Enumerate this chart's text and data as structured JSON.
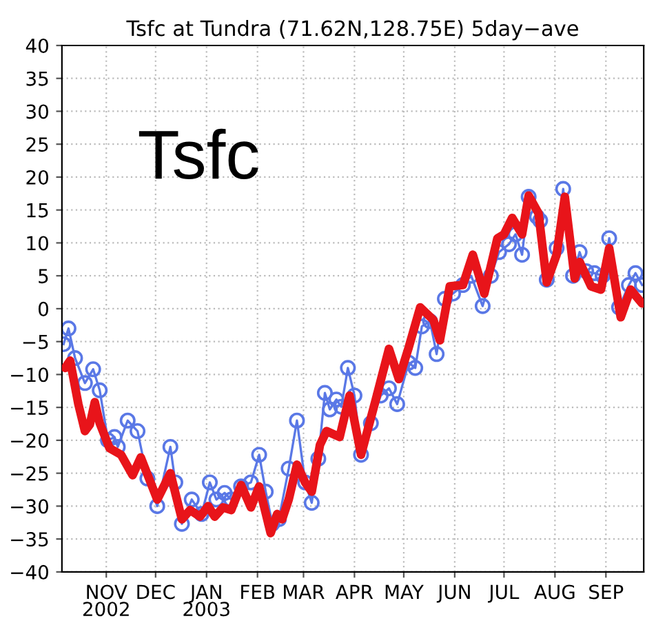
{
  "chart_data": {
    "type": "line",
    "title": "Tsfc at Tundra (71.62N,128.75E) 5day−ave",
    "annotations": [
      "Tsfc"
    ],
    "xlim": [
      "2002-10-05",
      "2003-09-24"
    ],
    "xticks": [
      {
        "value": "2002-11-01",
        "label": "NOV\n2002"
      },
      {
        "value": "2002-12-01",
        "label": "DEC"
      },
      {
        "value": "2003-01-01",
        "label": "JAN\n2003"
      },
      {
        "value": "2003-02-01",
        "label": "FEB"
      },
      {
        "value": "2003-03-01",
        "label": "MAR"
      },
      {
        "value": "2003-04-01",
        "label": "APR"
      },
      {
        "value": "2003-05-01",
        "label": "MAY"
      },
      {
        "value": "2003-06-01",
        "label": "JUN"
      },
      {
        "value": "2003-07-01",
        "label": "JUL"
      },
      {
        "value": "2003-08-01",
        "label": "AUG"
      },
      {
        "value": "2003-09-01",
        "label": "SEP"
      }
    ],
    "ylim": [
      -40,
      40
    ],
    "yticks": [
      {
        "value": -40,
        "label": "−40"
      },
      {
        "value": -35,
        "label": "−35"
      },
      {
        "value": -30,
        "label": "−30"
      },
      {
        "value": -25,
        "label": "−25"
      },
      {
        "value": -20,
        "label": "−20"
      },
      {
        "value": -15,
        "label": "−15"
      },
      {
        "value": -10,
        "label": "−10"
      },
      {
        "value": -5,
        "label": "−5"
      },
      0,
      5,
      10,
      15,
      20,
      25,
      30,
      35,
      40
    ],
    "grid": true,
    "series": [
      {
        "color": "#5a78e6",
        "marker": "circle",
        "x": [
          "2002-10-06",
          "2002-10-09",
          "2002-10-13",
          "2002-10-19",
          "2002-10-24",
          "2002-10-28",
          "2002-11-02",
          "2002-11-06",
          "2002-11-08",
          "2002-11-14",
          "2002-11-20",
          "2002-11-26",
          "2002-12-02",
          "2002-12-10",
          "2002-12-13",
          "2002-12-17",
          "2002-12-23",
          "2002-12-29",
          "2003-01-03",
          "2003-01-07",
          "2003-01-12",
          "2003-01-16",
          "2003-01-22",
          "2003-01-28",
          "2003-02-02",
          "2003-02-06",
          "2003-02-10",
          "2003-02-14",
          "2003-02-20",
          "2003-02-25",
          "2003-03-02",
          "2003-03-06",
          "2003-03-10",
          "2003-03-14",
          "2003-03-17",
          "2003-03-21",
          "2003-03-24",
          "2003-03-28",
          "2003-04-01",
          "2003-04-05",
          "2003-04-11",
          "2003-04-17",
          "2003-04-22",
          "2003-04-27",
          "2003-05-04",
          "2003-05-08",
          "2003-05-12",
          "2003-05-17",
          "2003-05-21",
          "2003-05-26",
          "2003-05-31",
          "2003-06-06",
          "2003-06-11",
          "2003-06-18",
          "2003-06-23",
          "2003-06-28",
          "2003-07-04",
          "2003-07-08",
          "2003-07-12",
          "2003-07-16",
          "2003-07-21",
          "2003-07-23",
          "2003-07-27",
          "2003-08-02",
          "2003-08-06",
          "2003-08-12",
          "2003-08-16",
          "2003-08-20",
          "2003-08-25",
          "2003-08-30",
          "2003-09-03",
          "2003-09-09",
          "2003-09-15",
          "2003-09-19",
          "2003-09-23"
        ],
        "values": [
          -5.4,
          -3,
          -7.5,
          -11.3,
          -9.2,
          -12.4,
          -20,
          -19.5,
          -21,
          -17,
          -18.6,
          -25.8,
          -30,
          -21,
          -26.4,
          -32.7,
          -29,
          -31.2,
          -26.4,
          -29,
          -28,
          -29,
          -27,
          -26.4,
          -22.2,
          -27.8,
          -32.7,
          -32,
          -24.3,
          -17,
          -26.4,
          -29.5,
          -22.8,
          -12.8,
          -15.3,
          -13.8,
          -14.9,
          -9,
          -13.2,
          -22.2,
          -17.4,
          -13.2,
          -12.1,
          -14.5,
          -8.2,
          -9,
          -2.7,
          -1.9,
          -6.9,
          1.5,
          2.3,
          3.6,
          5,
          0.4,
          5,
          8.6,
          9.8,
          11.3,
          8.2,
          17,
          14,
          13.4,
          4.4,
          9.2,
          18.2,
          5,
          8.6,
          5.7,
          5.4,
          5,
          10.7,
          0.2,
          3.6,
          5.4,
          3.6
        ]
      },
      {
        "color": "#e8141a",
        "marker": "none",
        "x": [
          "2002-10-07",
          "2002-10-10",
          "2002-10-15",
          "2002-10-19",
          "2002-10-22",
          "2002-10-25",
          "2002-10-28",
          "2002-11-03",
          "2002-11-10",
          "2002-11-17",
          "2002-11-22",
          "2002-11-27",
          "2002-12-02",
          "2002-12-10",
          "2002-12-17",
          "2002-12-22",
          "2002-12-28",
          "2003-01-02",
          "2003-01-06",
          "2003-01-11",
          "2003-01-16",
          "2003-01-22",
          "2003-01-28",
          "2003-02-02",
          "2003-02-09",
          "2003-02-13",
          "2003-02-16",
          "2003-02-20",
          "2003-02-25",
          "2003-03-02",
          "2003-03-06",
          "2003-03-11",
          "2003-03-15",
          "2003-03-23",
          "2003-03-29",
          "2003-04-05",
          "2003-04-14",
          "2003-04-22",
          "2003-04-28",
          "2003-05-04",
          "2003-05-11",
          "2003-05-19",
          "2003-05-23",
          "2003-05-29",
          "2003-06-06",
          "2003-06-12",
          "2003-06-19",
          "2003-06-27",
          "2003-07-01",
          "2003-07-06",
          "2003-07-12",
          "2003-07-16",
          "2003-07-22",
          "2003-07-27",
          "2003-08-02",
          "2003-08-07",
          "2003-08-13",
          "2003-08-16",
          "2003-08-23",
          "2003-08-29",
          "2003-09-03",
          "2003-09-10",
          "2003-09-16",
          "2003-09-23"
        ],
        "values": [
          -9,
          -7.9,
          -14.5,
          -18.6,
          -17.6,
          -14.2,
          -17.4,
          -21.2,
          -22.2,
          -25.3,
          -22.6,
          -25.8,
          -29,
          -25,
          -32,
          -30.6,
          -31.6,
          -30,
          -31.6,
          -30.2,
          -30.6,
          -26.8,
          -30.2,
          -27,
          -34.1,
          -31.2,
          -32,
          -29,
          -23.7,
          -26.4,
          -27.8,
          -20.7,
          -18.6,
          -19.5,
          -13.2,
          -22.2,
          -13.8,
          -6.1,
          -10.7,
          -5.9,
          0.2,
          -1.7,
          -4.8,
          3.4,
          3.6,
          8.2,
          2.3,
          10.7,
          11.3,
          13.8,
          11.3,
          17.2,
          14.5,
          4,
          8.2,
          17,
          4.6,
          7.1,
          3.4,
          2.9,
          9.2,
          -1.3,
          2.9,
          0.8
        ]
      }
    ]
  }
}
